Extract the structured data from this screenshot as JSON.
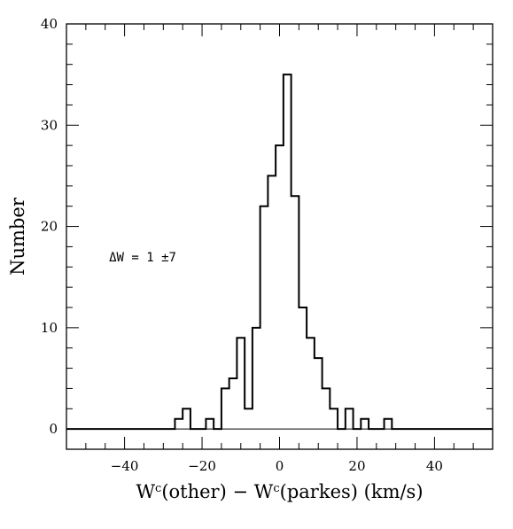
{
  "chart_data": {
    "type": "histogram",
    "title": "",
    "xlabel": "Wc(other) − Wc(parkes) (km/s)",
    "xlabel_parts": {
      "left_main": "W",
      "left_sup": "c",
      "left_rest": "(other)",
      "operator": "−",
      "right_main": "W",
      "right_sup": "c",
      "right_rest": "(parkes) (km/s)"
    },
    "ylabel": "Number",
    "xlim": [
      -55,
      55
    ],
    "ylim": [
      -2,
      40
    ],
    "x_ticks": [
      -40,
      -20,
      0,
      20,
      40
    ],
    "x_tick_labels": [
      "−40",
      "−20",
      "0",
      "20",
      "40"
    ],
    "y_ticks": [
      0,
      10,
      20,
      30,
      40
    ],
    "y_tick_labels": [
      "0",
      "10",
      "20",
      "30",
      "40"
    ],
    "bin_width": 2,
    "bins": [
      {
        "x0": -27,
        "count": 1
      },
      {
        "x0": -25,
        "count": 2
      },
      {
        "x0": -23,
        "count": 0
      },
      {
        "x0": -21,
        "count": 0
      },
      {
        "x0": -19,
        "count": 1
      },
      {
        "x0": -17,
        "count": 0
      },
      {
        "x0": -15,
        "count": 4
      },
      {
        "x0": -13,
        "count": 5
      },
      {
        "x0": -11,
        "count": 9
      },
      {
        "x0": -9,
        "count": 2
      },
      {
        "x0": -7,
        "count": 10
      },
      {
        "x0": -5,
        "count": 22
      },
      {
        "x0": -3,
        "count": 25
      },
      {
        "x0": -1,
        "count": 28
      },
      {
        "x0": 1,
        "count": 35
      },
      {
        "x0": 3,
        "count": 23
      },
      {
        "x0": 5,
        "count": 12
      },
      {
        "x0": 7,
        "count": 9
      },
      {
        "x0": 9,
        "count": 7
      },
      {
        "x0": 11,
        "count": 4
      },
      {
        "x0": 13,
        "count": 2
      },
      {
        "x0": 15,
        "count": 0
      },
      {
        "x0": 17,
        "count": 2
      },
      {
        "x0": 19,
        "count": 0
      },
      {
        "x0": 21,
        "count": 1
      },
      {
        "x0": 23,
        "count": 0
      },
      {
        "x0": 25,
        "count": 0
      },
      {
        "x0": 27,
        "count": 1
      }
    ],
    "annotations": [
      {
        "text": "ΔW = 1 ±7",
        "x": -44,
        "y": 17
      }
    ],
    "line_color": "#000000",
    "background_color": "#ffffff"
  }
}
